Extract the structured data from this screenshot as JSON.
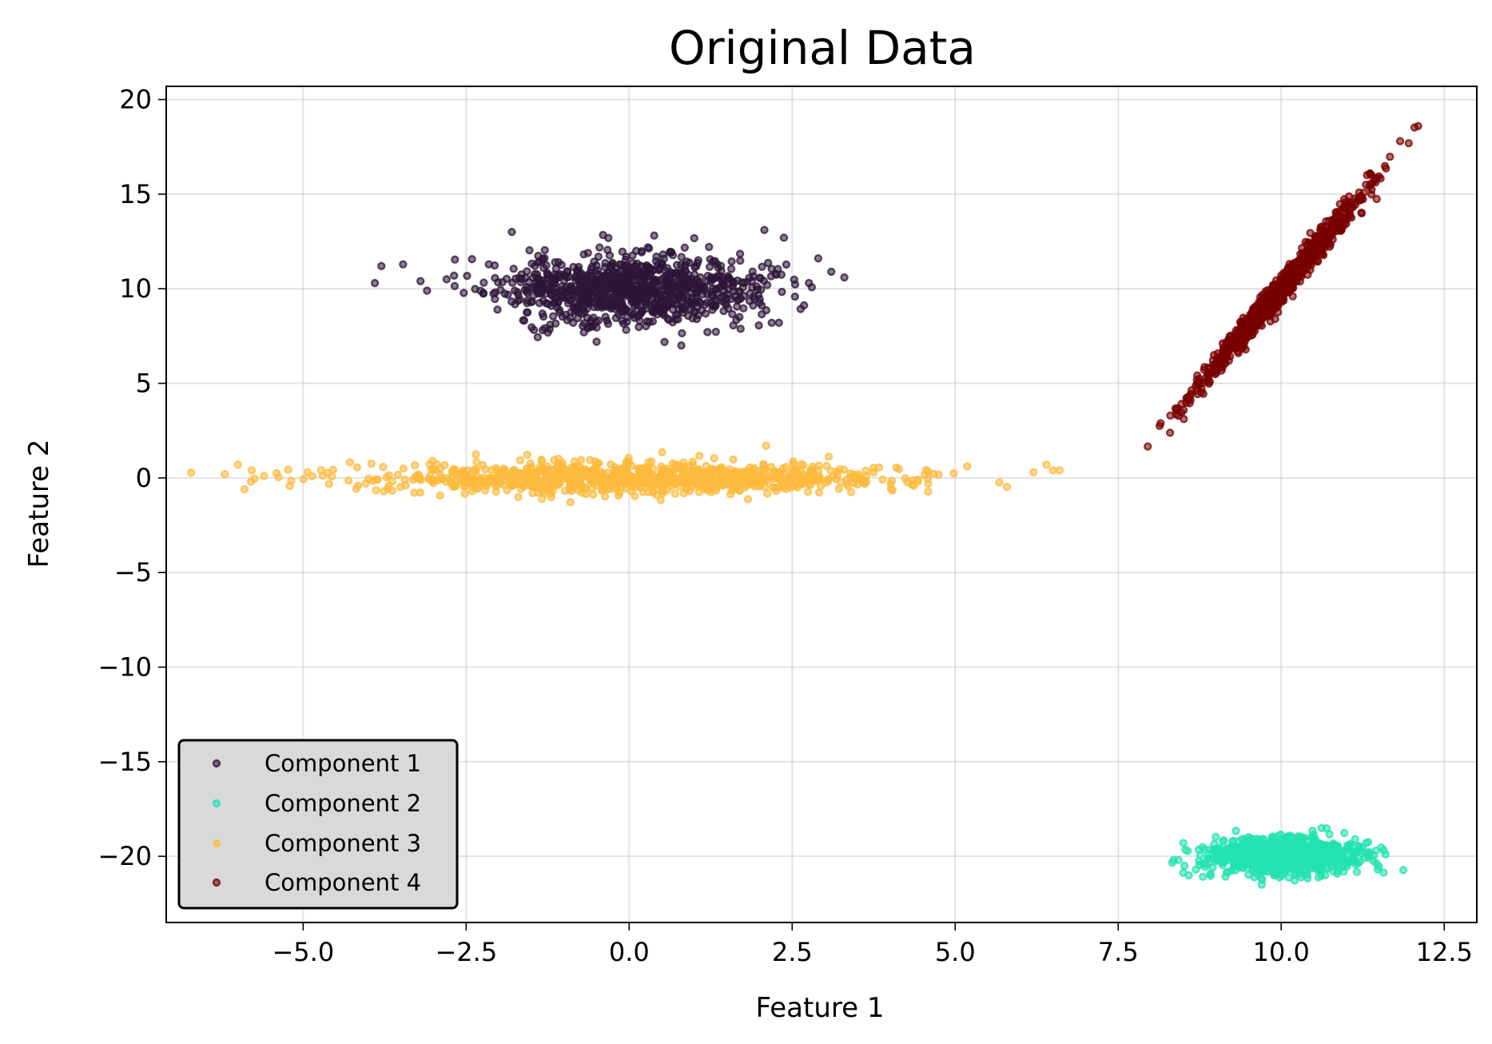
{
  "chart_data": {
    "type": "scatter",
    "title": "Original Data",
    "xlabel": "Feature 1",
    "ylabel": "Feature 2",
    "xlim": [
      -7.1,
      13.0
    ],
    "ylim": [
      -23.5,
      20.7
    ],
    "xticks": [
      -5.0,
      -2.5,
      0.0,
      2.5,
      5.0,
      7.5,
      10.0,
      12.5
    ],
    "xtick_labels": [
      "−5.0",
      "−2.5",
      "0.0",
      "2.5",
      "5.0",
      "7.5",
      "10.0",
      "12.5"
    ],
    "yticks": [
      -20,
      -15,
      -10,
      -5,
      0,
      5,
      10,
      15,
      20
    ],
    "ytick_labels": [
      "−20",
      "−15",
      "−10",
      "−5",
      "0",
      "5",
      "10",
      "15",
      "20"
    ],
    "grid": true,
    "legend_position": "lower-left",
    "series": [
      {
        "name": "Component 1",
        "color": "#2d1538",
        "distribution": {
          "kind": "gaussian",
          "mean": [
            0.0,
            10.0
          ],
          "std": [
            1.0,
            0.9
          ],
          "count": 1000,
          "seed": 11
        },
        "outliers": [
          [
            -3.9,
            10.3
          ],
          [
            -3.8,
            11.2
          ],
          [
            -3.2,
            10.4
          ],
          [
            -3.1,
            9.9
          ],
          [
            -2.8,
            10.5
          ],
          [
            -1.8,
            13.0
          ],
          [
            3.1,
            10.9
          ],
          [
            3.3,
            10.6
          ],
          [
            0.8,
            7.0
          ],
          [
            -0.5,
            7.2
          ]
        ]
      },
      {
        "name": "Component 2",
        "color": "#23e1b0",
        "distribution": {
          "kind": "gaussian",
          "mean": [
            10.0,
            -20.0
          ],
          "std": [
            0.55,
            0.45
          ],
          "count": 1000,
          "seed": 23
        },
        "outliers": [
          [
            8.35,
            -20.2
          ],
          [
            8.5,
            -19.3
          ],
          [
            11.6,
            -19.9
          ],
          [
            9.7,
            -21.5
          ],
          [
            11.3,
            -19.3
          ]
        ]
      },
      {
        "name": "Component 3",
        "color": "#fcb93d",
        "distribution": {
          "kind": "gaussian",
          "mean": [
            0.0,
            0.0
          ],
          "std": [
            2.0,
            0.4
          ],
          "count": 1000,
          "seed": 37
        },
        "outliers": [
          [
            -6.2,
            0.2
          ],
          [
            -6.0,
            0.7
          ],
          [
            -5.8,
            -0.2
          ],
          [
            -5.6,
            0.1
          ],
          [
            -5.9,
            -0.6
          ],
          [
            6.2,
            0.3
          ],
          [
            6.5,
            0.4
          ],
          [
            6.6,
            0.4
          ],
          [
            6.4,
            0.7
          ],
          [
            2.1,
            1.7
          ]
        ]
      },
      {
        "name": "Component 4",
        "color": "#7a0000",
        "distribution": {
          "kind": "correlated",
          "mean": [
            10.0,
            10.0
          ],
          "std": [
            0.6,
            0.36
          ],
          "slope": 4.0,
          "count": 1000,
          "seed": 53
        },
        "outliers": [
          [
            12.1,
            18.6
          ],
          [
            8.3,
            3.3
          ],
          [
            8.6,
            4.3
          ],
          [
            11.4,
            15.6
          ],
          [
            11.3,
            15.5
          ]
        ]
      }
    ]
  }
}
